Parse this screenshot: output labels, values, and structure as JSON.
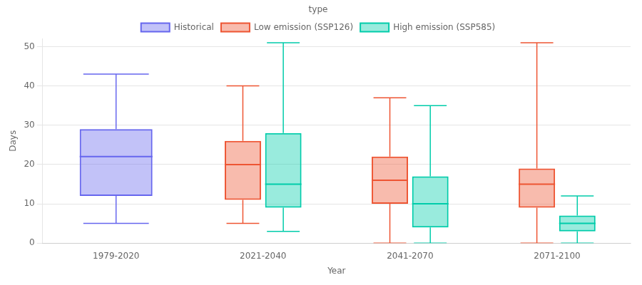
{
  "chart_data": {
    "type": "box",
    "categories": [
      "1979-2020",
      "2021-2040",
      "2041-2070",
      "2071-2100"
    ],
    "series": [
      {
        "name": "Historical",
        "color": "#6666ee",
        "values": [
          {
            "min": 5,
            "q1": 12,
            "median": 22,
            "q3": 29,
            "max": 43
          },
          null,
          null,
          null
        ]
      },
      {
        "name": "Low emission (SSP126)",
        "color": "#ee5533",
        "values": [
          null,
          {
            "min": 5,
            "q1": 11,
            "median": 20,
            "q3": 26,
            "max": 40
          },
          {
            "min": 0,
            "q1": 10,
            "median": 16,
            "q3": 22,
            "max": 37
          },
          {
            "min": 0,
            "q1": 9,
            "median": 15,
            "q3": 19,
            "max": 51
          }
        ]
      },
      {
        "name": "High emission (SSP585)",
        "color": "#00ccaa",
        "values": [
          null,
          {
            "min": 3,
            "q1": 9,
            "median": 15,
            "q3": 28,
            "max": 51
          },
          {
            "min": 0,
            "q1": 4,
            "median": 10,
            "q3": 17,
            "max": 35
          },
          {
            "min": 0,
            "q1": 3,
            "median": 5,
            "q3": 7,
            "max": 12
          }
        ]
      }
    ],
    "xlabel": "Year",
    "ylabel": "Days",
    "legend_title": "type",
    "legend": "top",
    "ylim": [
      0,
      52
    ],
    "yticks": [
      0,
      10,
      20,
      30,
      40,
      50
    ],
    "grid": "y"
  }
}
